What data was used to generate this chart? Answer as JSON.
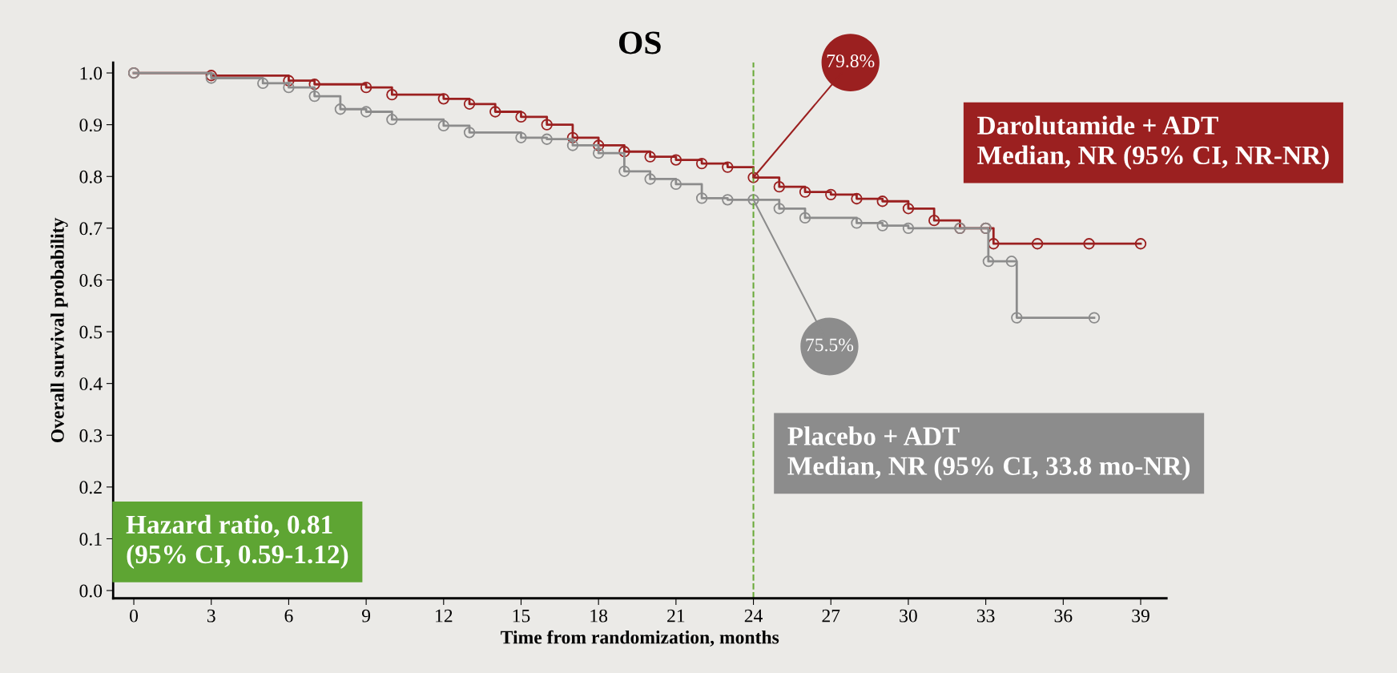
{
  "chart_data": {
    "type": "step",
    "title": "OS",
    "xlabel": "Time from randomization, months",
    "ylabel": "Overall survival probability",
    "xlim": [
      -0.8,
      40
    ],
    "xticks": [
      0,
      3,
      6,
      9,
      12,
      15,
      18,
      21,
      24,
      27,
      30,
      33,
      36,
      39
    ],
    "ylim": [
      -0.015,
      1.02
    ],
    "yticks": [
      {
        "value": 0,
        "label": "0.0"
      },
      0.1,
      0.2,
      0.3,
      0.4,
      0.5,
      0.6,
      0.7,
      0.8,
      0.9,
      {
        "value": 1,
        "label": "1.0"
      }
    ],
    "grid": false,
    "legend": false,
    "marker": "circle",
    "line_style": "solid",
    "series": [
      {
        "color": "#9b2020",
        "x": [
          0,
          3,
          6,
          7,
          9,
          10,
          12,
          13,
          14,
          15,
          16,
          17,
          18,
          19,
          20,
          21,
          22,
          23,
          24,
          25,
          26,
          27,
          28,
          29,
          30,
          31,
          32,
          33,
          33.3,
          35,
          37,
          39
        ],
        "values": [
          1.0,
          0.995,
          0.985,
          0.978,
          0.972,
          0.958,
          0.95,
          0.94,
          0.925,
          0.915,
          0.9,
          0.875,
          0.86,
          0.848,
          0.838,
          0.832,
          0.825,
          0.818,
          0.798,
          0.78,
          0.77,
          0.765,
          0.757,
          0.752,
          0.738,
          0.715,
          0.7,
          0.7,
          0.67,
          0.67,
          0.67,
          0.67
        ]
      },
      {
        "color": "#8c8c8c",
        "x": [
          0,
          3,
          5,
          6,
          7,
          8,
          9,
          10,
          12,
          13,
          15,
          16,
          17,
          18,
          19,
          20,
          21,
          22,
          23,
          24,
          25,
          26,
          28,
          29,
          30,
          32,
          33,
          33.1,
          34,
          34.2,
          37.2
        ],
        "values": [
          1.0,
          0.99,
          0.98,
          0.972,
          0.955,
          0.93,
          0.925,
          0.91,
          0.898,
          0.885,
          0.875,
          0.872,
          0.86,
          0.845,
          0.81,
          0.795,
          0.785,
          0.758,
          0.755,
          0.755,
          0.738,
          0.72,
          0.71,
          0.705,
          0.7,
          0.7,
          0.7,
          0.636,
          0.636,
          0.527,
          0.527
        ]
      }
    ],
    "ref_lines": [
      {
        "axis": "x",
        "value": 24,
        "label": null,
        "color": "#6aaa3a",
        "line_style": "dashed"
      }
    ],
    "annotations": [
      {
        "text": "79.8%",
        "x": 24,
        "y": 0.798
      },
      {
        "text": "75.5%",
        "x": 24,
        "y": 0.755
      },
      "Darolutamide + ADT\nMedian, NR (95% CI, NR-NR)",
      "Placebo + ADT\nMedian, NR (95% CI, 33.8 mo-NR)",
      "Hazard ratio, 0.81\n(95% CI, 0.59-1.12)"
    ]
  }
}
